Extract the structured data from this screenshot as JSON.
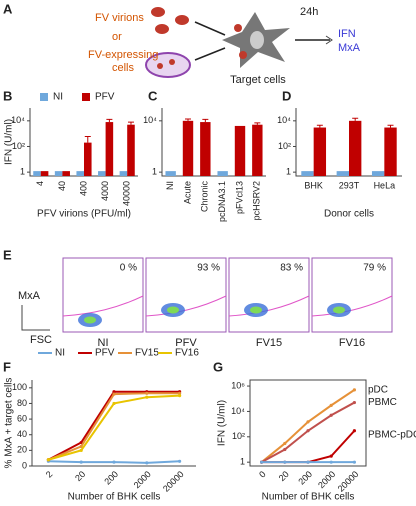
{
  "figure": {
    "panel_labels": [
      "A",
      "B",
      "C",
      "D",
      "E",
      "F",
      "G"
    ]
  },
  "diagram": {
    "source_1": "FV virions",
    "or": "or",
    "source_2": [
      "FV-expressing",
      "cells"
    ],
    "target": "Target cells",
    "time": "24h",
    "outputs": [
      "IFN",
      "MxA"
    ]
  },
  "flow": {
    "y_label": "MxA",
    "x_label": "FSC",
    "samples": [
      {
        "name": "NI",
        "color": "#6fa8dc",
        "percent": "0 %"
      },
      {
        "name": "PFV",
        "color": "#d0021b",
        "percent": "93 %"
      },
      {
        "name": "FV15",
        "color": "#e69138",
        "percent": "83 %"
      },
      {
        "name": "FV16",
        "color": "#e8c400",
        "percent": "79 %"
      }
    ]
  },
  "chart_data": [
    {
      "type": "bar",
      "ylabel": "IFN (U/ml)",
      "xlabel": "PFV virions (PFU/ml)",
      "log_scale": true,
      "legend": "top",
      "categories": [
        "4",
        "40",
        "400",
        "4000",
        "40000"
      ],
      "series": [
        {
          "name": "NI",
          "color": "#6fa8dc",
          "values": [
            1.2,
            1.2,
            1.2,
            1.2,
            1.2
          ]
        },
        {
          "name": "PFV",
          "color": "#c00000",
          "values": [
            1.2,
            1.2,
            200,
            8000,
            5000
          ],
          "errors": [
            null,
            null,
            400,
            5000,
            3000
          ]
        }
      ],
      "ylim": [
        0.5,
        100000
      ],
      "yticks": [
        1,
        {
          "value": 100,
          "label": "10²"
        },
        {
          "value": 10000,
          "label": "10⁴"
        }
      ]
    },
    {
      "type": "bar",
      "log_scale": true,
      "categories": [
        "NI",
        "Acute",
        "Chronic",
        "pcDNA3.1",
        "pFVcl13",
        "pcHSRV2"
      ],
      "values": [
        1.2,
        10000,
        8000,
        1.2,
        4000,
        5000
      ],
      "errors": [
        null,
        4000,
        5000,
        null,
        null,
        2000
      ],
      "colors": [
        "#6fa8dc",
        "#c00000",
        "#c00000",
        "#6fa8dc",
        "#c00000",
        "#c00000"
      ],
      "ylim": [
        0.5,
        100000
      ],
      "yticks": [
        1,
        {
          "value": 10000,
          "label": "10⁴"
        }
      ]
    },
    {
      "type": "bar",
      "xlabel": "Donor cells",
      "log_scale": true,
      "categories": [
        "BHK",
        "293T",
        "HeLa"
      ],
      "series": [
        {
          "color": "#6fa8dc",
          "values": [
            1.2,
            1.2,
            1.2
          ]
        },
        {
          "color": "#c00000",
          "values": [
            3000,
            10000,
            3000
          ],
          "errors": [
            1500,
            6000,
            1500
          ]
        }
      ],
      "ylim": [
        0.5,
        100000
      ],
      "yticks": [
        1,
        {
          "value": 100,
          "label": "10²"
        },
        {
          "value": 10000,
          "label": "10⁴"
        }
      ]
    },
    {
      "type": "line",
      "ylabel": "% MxA + target cells",
      "xlabel": "Number of BHK cells",
      "legend": "top",
      "categories": [
        "2",
        "20",
        "200",
        "2000",
        "20000"
      ],
      "series": [
        {
          "name": "NI",
          "color": "#6fa8dc",
          "values": [
            6,
            5,
            5,
            4,
            6
          ]
        },
        {
          "name": "PFV",
          "color": "#c00000",
          "values": [
            8,
            30,
            95,
            95,
            95
          ]
        },
        {
          "name": "FV15",
          "color": "#e69138",
          "values": [
            8,
            25,
            92,
            93,
            93
          ]
        },
        {
          "name": "FV16",
          "color": "#e8c400",
          "values": [
            8,
            20,
            80,
            88,
            90
          ]
        }
      ],
      "ylim": [
        0,
        110
      ],
      "yticks": [
        0,
        20,
        40,
        60,
        80,
        100
      ]
    },
    {
      "type": "line",
      "ylabel": "IFN (U/ml)",
      "xlabel": "Number of BHK cells",
      "log_scale": true,
      "legend": "line-end",
      "categories": [
        "0",
        "20",
        "200",
        "2000",
        "20000"
      ],
      "series": [
        {
          "name": "pDC",
          "color": "#e69138",
          "values": [
            1,
            30,
            1500,
            30000,
            500000
          ]
        },
        {
          "name": "PBMC",
          "color": "#c0504d",
          "values": [
            1,
            10,
            300,
            5000,
            50000
          ]
        },
        {
          "name": "PBMC-pDC",
          "color": "#c00000",
          "values": [
            1,
            1,
            1,
            3,
            300
          ]
        },
        {
          "color": "#6fa8dc",
          "values": [
            1,
            1,
            1,
            1,
            1
          ]
        }
      ],
      "ylim": [
        0.5,
        3000000
      ],
      "yticks": [
        1,
        {
          "value": 100,
          "label": "10²"
        },
        {
          "value": 10000,
          "label": "10⁴"
        },
        {
          "value": 1000000,
          "label": "10⁶"
        }
      ]
    }
  ]
}
